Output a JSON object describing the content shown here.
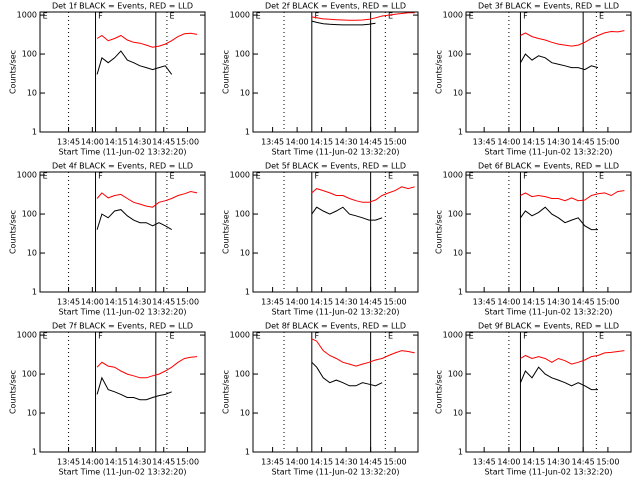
{
  "chart_data": [
    {
      "type": "line",
      "title": "Det 1f BLACK = Events, RED = LLD",
      "xlabel": "Start Time (11-Jun-02 13:32:20)",
      "ylabel": "Counts/sec",
      "log_y": true,
      "xlim": [
        "13:27",
        "15:11"
      ],
      "ylim": [
        1,
        1200
      ],
      "yticks": [
        1,
        10,
        100,
        1000
      ],
      "xticks": [
        "13:45",
        "14:00",
        "14:15",
        "14:30",
        "14:45",
        "15:00"
      ],
      "vlines": [
        {
          "x": "13:45",
          "style": "dotted"
        },
        {
          "x": "14:02",
          "style": "solid"
        },
        {
          "x": "14:40",
          "style": "solid"
        },
        {
          "x": "14:47",
          "style": "dotted"
        }
      ],
      "annotations": [
        {
          "text": "E",
          "x": "13:28"
        },
        {
          "text": "F",
          "x": "14:03"
        },
        {
          "text": "E",
          "x": "14:48"
        }
      ],
      "x": [
        "14:03",
        "14:06",
        "14:10",
        "14:14",
        "14:18",
        "14:22",
        "14:26",
        "14:30",
        "14:34",
        "14:38",
        "14:42",
        "14:46",
        "14:50",
        "14:54",
        "14:58",
        "15:02",
        "15:06"
      ],
      "series": [
        {
          "color": "#000000",
          "values": [
            30,
            80,
            60,
            80,
            120,
            70,
            60,
            50,
            45,
            40,
            45,
            50,
            30,
            null,
            null,
            null,
            null
          ]
        },
        {
          "color": "#ff0000",
          "values": [
            250,
            300,
            220,
            250,
            300,
            230,
            200,
            190,
            170,
            150,
            160,
            180,
            220,
            280,
            330,
            340,
            320
          ]
        }
      ]
    },
    {
      "type": "line",
      "title": "Det 2f BLACK = Events, RED = LLD",
      "xlabel": "Start Time (11-Jun-02 13:32:20)",
      "ylabel": "Counts/sec",
      "log_y": true,
      "xlim": [
        "13:33",
        "15:14"
      ],
      "ylim": [
        1,
        1200
      ],
      "yticks": [
        1,
        10,
        100,
        1000
      ],
      "xticks": [
        "13:45",
        "14:00",
        "14:15",
        "14:30",
        "14:45",
        "15:00"
      ],
      "vlines": [
        {
          "x": "13:52",
          "style": "dotted"
        },
        {
          "x": "14:09",
          "style": "solid"
        },
        {
          "x": "14:45",
          "style": "solid"
        },
        {
          "x": "14:54",
          "style": "dotted"
        }
      ],
      "annotations": [
        {
          "text": "E",
          "x": "13:34"
        },
        {
          "text": "F",
          "x": "14:10"
        },
        {
          "text": "E",
          "x": "14:55"
        }
      ],
      "x": [
        "14:09",
        "14:12",
        "14:16",
        "14:20",
        "14:24",
        "14:28",
        "14:32",
        "14:36",
        "14:40",
        "14:44",
        "14:48",
        "14:52",
        "14:56",
        "15:00",
        "15:04",
        "15:08",
        "15:12"
      ],
      "series": [
        {
          "color": "#000000",
          "values": [
            700,
            650,
            600,
            580,
            570,
            560,
            560,
            560,
            560,
            580,
            620,
            null,
            null,
            null,
            null,
            null,
            null
          ]
        },
        {
          "color": "#ff0000",
          "values": [
            900,
            850,
            800,
            780,
            760,
            750,
            740,
            740,
            750,
            780,
            850,
            950,
            1000,
            1050,
            1100,
            1150,
            1150
          ]
        }
      ]
    },
    {
      "type": "line",
      "title": "Det 3f BLACK = Events, RED = LLD",
      "xlabel": "Start Time (11-Jun-02 13:32:20)",
      "ylabel": "Counts/sec",
      "log_y": true,
      "xlim": [
        "13:34",
        "15:14"
      ],
      "ylim": [
        1,
        1200
      ],
      "yticks": [
        1,
        10,
        100,
        1000
      ],
      "xticks": [
        "13:45",
        "14:00",
        "14:15",
        "14:30",
        "14:45",
        "15:00"
      ],
      "vlines": [
        {
          "x": "14:00",
          "style": "dotted"
        },
        {
          "x": "14:07",
          "style": "solid"
        },
        {
          "x": "14:45",
          "style": "solid"
        },
        {
          "x": "14:53",
          "style": "dotted"
        }
      ],
      "annotations": [
        {
          "text": "E",
          "x": "13:35"
        },
        {
          "text": "F",
          "x": "14:08"
        },
        {
          "text": "E",
          "x": "14:54"
        }
      ],
      "x": [
        "14:07",
        "14:10",
        "14:14",
        "14:18",
        "14:22",
        "14:26",
        "14:30",
        "14:34",
        "14:38",
        "14:42",
        "14:46",
        "14:50",
        "14:54",
        "14:58",
        "15:02",
        "15:06",
        "15:10"
      ],
      "series": [
        {
          "color": "#000000",
          "values": [
            60,
            100,
            70,
            90,
            80,
            60,
            55,
            50,
            45,
            45,
            40,
            50,
            45,
            null,
            null,
            null,
            null
          ]
        },
        {
          "color": "#ff0000",
          "values": [
            300,
            350,
            280,
            250,
            230,
            200,
            180,
            170,
            160,
            170,
            200,
            250,
            300,
            350,
            380,
            370,
            400
          ]
        }
      ]
    },
    {
      "type": "line",
      "title": "Det 4f BLACK = Events, RED = LLD",
      "xlabel": "Start Time (11-Jun-02 13:32:20)",
      "ylabel": "Counts/sec",
      "log_y": true,
      "xlim": [
        "13:27",
        "15:11"
      ],
      "ylim": [
        1,
        1200
      ],
      "yticks": [
        1,
        10,
        100,
        1000
      ],
      "xticks": [
        "13:45",
        "14:00",
        "14:15",
        "14:30",
        "14:45",
        "15:00"
      ],
      "vlines": [
        {
          "x": "13:45",
          "style": "dotted"
        },
        {
          "x": "14:02",
          "style": "solid"
        },
        {
          "x": "14:40",
          "style": "solid"
        },
        {
          "x": "14:47",
          "style": "dotted"
        }
      ],
      "annotations": [
        {
          "text": "E",
          "x": "13:28"
        },
        {
          "text": "F",
          "x": "14:03"
        },
        {
          "text": "E",
          "x": "14:48"
        }
      ],
      "x": [
        "14:03",
        "14:06",
        "14:10",
        "14:14",
        "14:18",
        "14:22",
        "14:26",
        "14:30",
        "14:34",
        "14:38",
        "14:42",
        "14:46",
        "14:50",
        "14:54",
        "14:58",
        "15:02",
        "15:06"
      ],
      "series": [
        {
          "color": "#000000",
          "values": [
            40,
            100,
            80,
            120,
            130,
            90,
            70,
            60,
            60,
            50,
            60,
            50,
            40,
            null,
            null,
            null,
            null
          ]
        },
        {
          "color": "#ff0000",
          "values": [
            250,
            350,
            260,
            300,
            320,
            250,
            200,
            180,
            160,
            150,
            200,
            220,
            250,
            300,
            330,
            380,
            350
          ]
        }
      ]
    },
    {
      "type": "line",
      "title": "Det 5f BLACK = Events, RED = LLD",
      "xlabel": "Start Time (11-Jun-02 13:32:20)",
      "ylabel": "Counts/sec",
      "log_y": true,
      "xlim": [
        "13:33",
        "15:14"
      ],
      "ylim": [
        1,
        1200
      ],
      "yticks": [
        1,
        10,
        100,
        1000
      ],
      "xticks": [
        "13:45",
        "14:00",
        "14:15",
        "14:30",
        "14:45",
        "15:00"
      ],
      "vlines": [
        {
          "x": "13:52",
          "style": "dotted"
        },
        {
          "x": "14:09",
          "style": "solid"
        },
        {
          "x": "14:45",
          "style": "solid"
        },
        {
          "x": "14:54",
          "style": "dotted"
        }
      ],
      "annotations": [
        {
          "text": "E",
          "x": "13:34"
        },
        {
          "text": "F",
          "x": "14:10"
        },
        {
          "text": "E",
          "x": "14:55"
        }
      ],
      "x": [
        "14:09",
        "14:12",
        "14:16",
        "14:20",
        "14:24",
        "14:28",
        "14:32",
        "14:36",
        "14:40",
        "14:44",
        "14:48",
        "14:52",
        "14:56",
        "15:00",
        "15:04",
        "15:08",
        "15:12"
      ],
      "series": [
        {
          "color": "#000000",
          "values": [
            100,
            150,
            120,
            100,
            120,
            150,
            100,
            90,
            80,
            70,
            70,
            80,
            null,
            null,
            null,
            null,
            null
          ]
        },
        {
          "color": "#ff0000",
          "values": [
            350,
            450,
            400,
            350,
            300,
            300,
            250,
            220,
            200,
            200,
            230,
            300,
            350,
            400,
            500,
            450,
            500
          ]
        }
      ]
    },
    {
      "type": "line",
      "title": "Det 6f BLACK = Events, RED = LLD",
      "xlabel": "Start Time (11-Jun-02 13:32:20)",
      "ylabel": "Counts/sec",
      "log_y": true,
      "xlim": [
        "13:34",
        "15:14"
      ],
      "ylim": [
        1,
        1200
      ],
      "yticks": [
        1,
        10,
        100,
        1000
      ],
      "xticks": [
        "13:45",
        "14:00",
        "14:15",
        "14:30",
        "14:45",
        "15:00"
      ],
      "vlines": [
        {
          "x": "14:00",
          "style": "dotted"
        },
        {
          "x": "14:07",
          "style": "solid"
        },
        {
          "x": "14:45",
          "style": "solid"
        },
        {
          "x": "14:53",
          "style": "dotted"
        }
      ],
      "annotations": [
        {
          "text": "E",
          "x": "13:35"
        },
        {
          "text": "F",
          "x": "14:08"
        },
        {
          "text": "E",
          "x": "14:54"
        }
      ],
      "x": [
        "14:07",
        "14:10",
        "14:14",
        "14:18",
        "14:22",
        "14:26",
        "14:30",
        "14:34",
        "14:38",
        "14:42",
        "14:46",
        "14:50",
        "14:54",
        "14:58",
        "15:02",
        "15:06",
        "15:10"
      ],
      "series": [
        {
          "color": "#000000",
          "values": [
            80,
            120,
            90,
            110,
            150,
            100,
            80,
            60,
            70,
            80,
            50,
            40,
            40,
            null,
            null,
            null,
            null
          ]
        },
        {
          "color": "#ff0000",
          "values": [
            300,
            350,
            280,
            300,
            280,
            250,
            250,
            220,
            260,
            220,
            230,
            300,
            330,
            350,
            300,
            380,
            400
          ]
        }
      ]
    },
    {
      "type": "line",
      "title": "Det 7f BLACK = Events, RED = LLD",
      "xlabel": "Start Time (11-Jun-02 13:32:20)",
      "ylabel": "Counts/sec",
      "log_y": true,
      "xlim": [
        "13:27",
        "15:11"
      ],
      "ylim": [
        1,
        1200
      ],
      "yticks": [
        1,
        10,
        100,
        1000
      ],
      "xticks": [
        "13:45",
        "14:00",
        "14:15",
        "14:30",
        "14:45",
        "15:00"
      ],
      "vlines": [
        {
          "x": "13:45",
          "style": "dotted"
        },
        {
          "x": "14:02",
          "style": "solid"
        },
        {
          "x": "14:40",
          "style": "solid"
        },
        {
          "x": "14:47",
          "style": "dotted"
        }
      ],
      "annotations": [
        {
          "text": "E",
          "x": "13:28"
        },
        {
          "text": "F",
          "x": "14:03"
        },
        {
          "text": "E",
          "x": "14:48"
        }
      ],
      "x": [
        "14:03",
        "14:06",
        "14:10",
        "14:14",
        "14:18",
        "14:22",
        "14:26",
        "14:30",
        "14:34",
        "14:38",
        "14:42",
        "14:46",
        "14:50",
        "14:54",
        "14:58",
        "15:02",
        "15:06"
      ],
      "series": [
        {
          "color": "#000000",
          "values": [
            30,
            80,
            40,
            35,
            30,
            25,
            25,
            22,
            22,
            25,
            28,
            30,
            35,
            null,
            null,
            null,
            null
          ]
        },
        {
          "color": "#ff0000",
          "values": [
            150,
            200,
            160,
            150,
            120,
            100,
            90,
            80,
            80,
            90,
            100,
            120,
            150,
            200,
            250,
            270,
            280
          ]
        }
      ]
    },
    {
      "type": "line",
      "title": "Det 8f BLACK = Events, RED = LLD",
      "xlabel": "Start Time (11-Jun-02 13:32:20)",
      "ylabel": "Counts/sec",
      "log_y": true,
      "xlim": [
        "13:33",
        "15:14"
      ],
      "ylim": [
        1,
        1200
      ],
      "yticks": [
        1,
        10,
        100,
        1000
      ],
      "xticks": [
        "13:45",
        "14:00",
        "14:15",
        "14:30",
        "14:45",
        "15:00"
      ],
      "vlines": [
        {
          "x": "13:52",
          "style": "dotted"
        },
        {
          "x": "14:09",
          "style": "solid"
        },
        {
          "x": "14:45",
          "style": "solid"
        },
        {
          "x": "14:54",
          "style": "dotted"
        }
      ],
      "annotations": [
        {
          "text": "E",
          "x": "13:34"
        },
        {
          "text": "F",
          "x": "14:10"
        },
        {
          "text": "E",
          "x": "14:55"
        }
      ],
      "x": [
        "14:09",
        "14:12",
        "14:16",
        "14:20",
        "14:24",
        "14:28",
        "14:32",
        "14:36",
        "14:40",
        "14:44",
        "14:48",
        "14:52",
        "14:56",
        "15:00",
        "15:04",
        "15:08",
        "15:12"
      ],
      "series": [
        {
          "color": "#000000",
          "values": [
            200,
            150,
            80,
            60,
            70,
            60,
            50,
            50,
            60,
            55,
            50,
            60,
            null,
            null,
            null,
            null,
            null
          ]
        },
        {
          "color": "#ff0000",
          "values": [
            800,
            700,
            400,
            300,
            250,
            200,
            180,
            160,
            180,
            200,
            230,
            250,
            300,
            350,
            400,
            380,
            350
          ]
        }
      ]
    },
    {
      "type": "line",
      "title": "Det 9f BLACK = Events, RED = LLD",
      "xlabel": "Start Time (11-Jun-02 13:32:20)",
      "ylabel": "Counts/sec",
      "log_y": true,
      "xlim": [
        "13:34",
        "15:14"
      ],
      "ylim": [
        1,
        1200
      ],
      "yticks": [
        1,
        10,
        100,
        1000
      ],
      "xticks": [
        "13:45",
        "14:00",
        "14:15",
        "14:30",
        "14:45",
        "15:00"
      ],
      "vlines": [
        {
          "x": "14:00",
          "style": "dotted"
        },
        {
          "x": "14:07",
          "style": "solid"
        },
        {
          "x": "14:45",
          "style": "solid"
        },
        {
          "x": "14:53",
          "style": "dotted"
        }
      ],
      "annotations": [
        {
          "text": "E",
          "x": "13:35"
        },
        {
          "text": "F",
          "x": "14:08"
        },
        {
          "text": "E",
          "x": "14:54"
        }
      ],
      "x": [
        "14:07",
        "14:10",
        "14:14",
        "14:18",
        "14:22",
        "14:26",
        "14:30",
        "14:34",
        "14:38",
        "14:42",
        "14:46",
        "14:50",
        "14:54",
        "14:58",
        "15:02",
        "15:06",
        "15:10"
      ],
      "series": [
        {
          "color": "#000000",
          "values": [
            60,
            120,
            80,
            150,
            100,
            80,
            70,
            60,
            50,
            60,
            50,
            40,
            40,
            null,
            null,
            null,
            null
          ]
        },
        {
          "color": "#ff0000",
          "values": [
            250,
            300,
            250,
            280,
            250,
            200,
            250,
            220,
            180,
            200,
            230,
            280,
            300,
            350,
            360,
            380,
            400
          ]
        }
      ]
    }
  ]
}
